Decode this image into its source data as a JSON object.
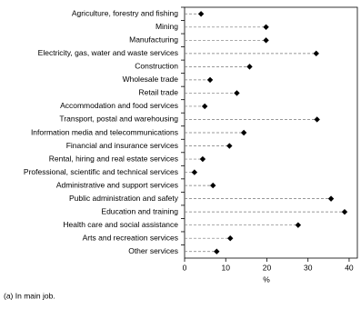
{
  "chart_data": {
    "type": "dot",
    "categories": [
      "Agriculture, forestry and fishing",
      "Mining",
      "Manufacturing",
      "Electricity, gas, water and waste services",
      "Construction",
      "Wholesale trade",
      "Retail trade",
      "Accommodation and food services",
      "Transport, postal and warehousing",
      "Information media and telecommunications",
      "Financial and insurance services",
      "Rental, hiring and real estate services",
      "Professional, scientific and technical services",
      "Administrative and support services",
      "Public administration and safety",
      "Education and training",
      "Health care and social assistance",
      "Arts and recreation services",
      "Other services"
    ],
    "values": [
      4.0,
      19.8,
      19.8,
      32.0,
      15.8,
      6.2,
      12.7,
      4.9,
      32.2,
      14.4,
      10.9,
      4.4,
      2.4,
      6.9,
      35.6,
      38.9,
      27.6,
      11.1,
      7.8
    ],
    "color": "#000000",
    "xlim": [
      0,
      42
    ],
    "xticks": [
      0,
      10,
      20,
      30,
      40
    ],
    "xlabel": "%",
    "footnote": "(a) In main job."
  }
}
